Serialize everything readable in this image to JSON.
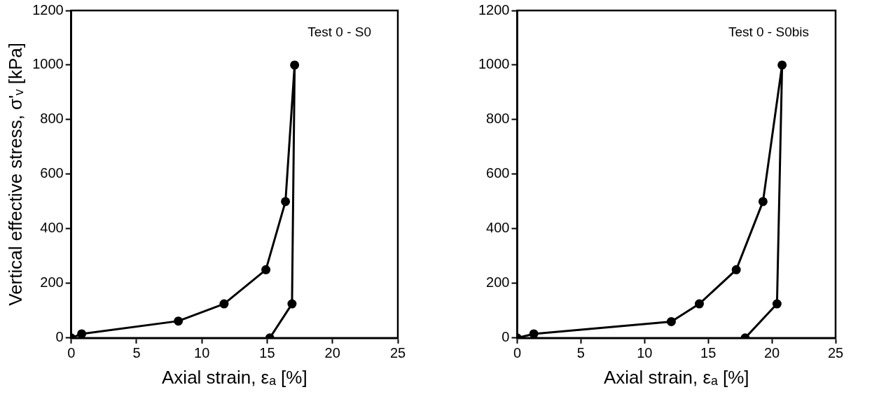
{
  "chart_data": [
    {
      "type": "line",
      "xlabel": "Axial strain, εₐ [%]",
      "ylabel": "Vertical effective stress, σ'ᵥ [kPa]",
      "annotations": [
        "Test 0 - S0"
      ],
      "xlim": [
        0,
        25
      ],
      "xticks": [
        0,
        5,
        10,
        15,
        20,
        25
      ],
      "ylim": [
        0,
        1200
      ],
      "yticks": [
        0,
        200,
        400,
        600,
        800,
        1000,
        1200
      ],
      "grid": false,
      "legend": false,
      "marker": "circle",
      "line_style": "solid",
      "series": [
        {
          "color": "#000000",
          "x": [
            0,
            0.8,
            8.2,
            11.7,
            14.9,
            16.4,
            17.1,
            16.9,
            15.2
          ],
          "values": [
            0,
            15,
            62,
            125,
            250,
            500,
            1000,
            125,
            0
          ]
        }
      ]
    },
    {
      "type": "line",
      "xlabel": "Axial strain, εₐ [%]",
      "annotations": [
        "Test 0 - S0bis"
      ],
      "xlim": [
        0,
        25
      ],
      "xticks": [
        0,
        5,
        10,
        15,
        20,
        25
      ],
      "ylim": [
        0,
        1200
      ],
      "yticks": [
        0,
        200,
        400,
        600,
        800,
        1000,
        1200
      ],
      "grid": false,
      "legend": false,
      "marker": "circle",
      "line_style": "solid",
      "series": [
        {
          "color": "#000000",
          "x": [
            0,
            1.3,
            12.1,
            14.3,
            17.2,
            19.3,
            20.8,
            20.4,
            17.9
          ],
          "values": [
            0,
            15,
            60,
            125,
            250,
            500,
            1000,
            125,
            0
          ]
        }
      ]
    }
  ]
}
